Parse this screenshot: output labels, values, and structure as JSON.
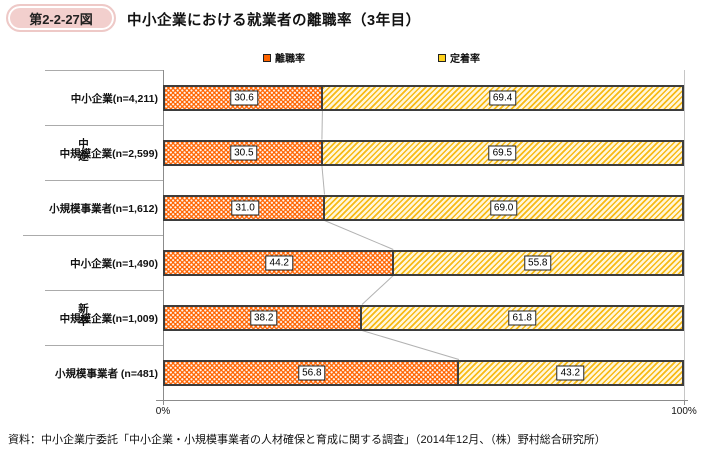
{
  "header": {
    "badge": "第2-2-27図",
    "title": "中小企業における就業者の離職率（3年目）"
  },
  "legend": {
    "items": [
      {
        "label": "離職率",
        "color": "#ff6400"
      },
      {
        "label": "定着率",
        "color": "#ffd21e"
      }
    ]
  },
  "chart_data": {
    "type": "bar",
    "orientation": "horizontal",
    "stacked": true,
    "categories": [
      "中小企業(n=4,211)",
      "中規模企業(n=2,599)",
      "小規模事業者(n=1,612)",
      "中小企業(n=1,490)",
      "中規模企業(n=1,009)",
      "小規模事業者 (n=481)"
    ],
    "group_labels": [
      {
        "label": "中途",
        "span": [
          0,
          2
        ]
      },
      {
        "label": "新卒",
        "span": [
          3,
          5
        ]
      }
    ],
    "series": [
      {
        "name": "離職率",
        "values": [
          30.6,
          30.5,
          31.0,
          44.2,
          38.2,
          56.8
        ],
        "color": "#ff6400",
        "pattern": "white-dots"
      },
      {
        "name": "定着率",
        "values": [
          69.4,
          69.5,
          69.0,
          55.8,
          61.8,
          43.2
        ],
        "color": "#ffd21e",
        "pattern": "diagonal-stripes"
      }
    ],
    "xlim": [
      0,
      100
    ],
    "xtick_labels": [
      "0%",
      "100%"
    ],
    "value_labels": true,
    "legend_position": "top",
    "grid": false
  },
  "axis": {
    "x0_label": "0%",
    "x100_label": "100%"
  },
  "source": "資料：中小企業庁委託「中小企業・小規模事業者の人材確保と育成に関する調査」（2014年12月、（株）野村総合研究所）"
}
